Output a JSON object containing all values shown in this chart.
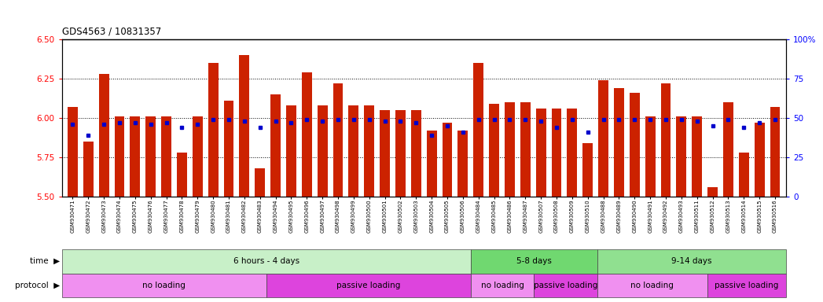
{
  "title": "GDS4563 / 10831357",
  "samples": [
    "GSM930471",
    "GSM930472",
    "GSM930473",
    "GSM930474",
    "GSM930475",
    "GSM930476",
    "GSM930477",
    "GSM930478",
    "GSM930479",
    "GSM930480",
    "GSM930481",
    "GSM930482",
    "GSM930483",
    "GSM930494",
    "GSM930495",
    "GSM930496",
    "GSM930497",
    "GSM930498",
    "GSM930499",
    "GSM930500",
    "GSM930501",
    "GSM930502",
    "GSM930503",
    "GSM930504",
    "GSM930505",
    "GSM930506",
    "GSM930484",
    "GSM930485",
    "GSM930486",
    "GSM930487",
    "GSM930507",
    "GSM930508",
    "GSM930509",
    "GSM930510",
    "GSM930488",
    "GSM930489",
    "GSM930490",
    "GSM930491",
    "GSM930492",
    "GSM930493",
    "GSM930511",
    "GSM930512",
    "GSM930513",
    "GSM930514",
    "GSM930515",
    "GSM930516"
  ],
  "bar_values": [
    6.07,
    5.85,
    6.28,
    6.01,
    6.01,
    6.01,
    6.01,
    5.78,
    6.01,
    6.35,
    6.11,
    6.4,
    5.68,
    6.15,
    6.08,
    6.29,
    6.08,
    6.22,
    6.08,
    6.08,
    6.05,
    6.05,
    6.05,
    5.92,
    5.97,
    5.92,
    6.35,
    6.09,
    6.1,
    6.1,
    6.06,
    6.06,
    6.06,
    5.84,
    6.24,
    6.19,
    6.16,
    6.01,
    6.22,
    6.01,
    6.01,
    5.56,
    6.1,
    5.78,
    5.97,
    6.07
  ],
  "percentile_values": [
    46,
    39,
    46,
    47,
    47,
    46,
    47,
    44,
    46,
    49,
    49,
    48,
    44,
    48,
    47,
    49,
    48,
    49,
    49,
    49,
    48,
    48,
    47,
    39,
    45,
    41,
    49,
    49,
    49,
    49,
    48,
    44,
    49,
    41,
    49,
    49,
    49,
    49,
    49,
    49,
    48,
    45,
    49,
    44,
    47,
    49
  ],
  "ylim_left": [
    5.5,
    6.5
  ],
  "ylim_right": [
    0,
    100
  ],
  "yticks_left": [
    5.5,
    5.75,
    6.0,
    6.25,
    6.5
  ],
  "yticks_right": [
    0,
    25,
    50,
    75,
    100
  ],
  "bar_color": "#cc2200",
  "percentile_color": "#0000cc",
  "dotted_lines": [
    5.75,
    6.0,
    6.25
  ],
  "time_groups": [
    {
      "label": "6 hours - 4 days",
      "start": 0,
      "end": 25,
      "color": "#c8f0c8"
    },
    {
      "label": "5-8 days",
      "start": 26,
      "end": 33,
      "color": "#70d870"
    },
    {
      "label": "9-14 days",
      "start": 34,
      "end": 45,
      "color": "#90e090"
    }
  ],
  "protocol_groups": [
    {
      "label": "no loading",
      "start": 0,
      "end": 12,
      "color": "#f090f0"
    },
    {
      "label": "passive loading",
      "start": 13,
      "end": 25,
      "color": "#dd44dd"
    },
    {
      "label": "no loading",
      "start": 26,
      "end": 29,
      "color": "#f090f0"
    },
    {
      "label": "passive loading",
      "start": 30,
      "end": 33,
      "color": "#dd44dd"
    },
    {
      "label": "no loading",
      "start": 34,
      "end": 40,
      "color": "#f090f0"
    },
    {
      "label": "passive loading",
      "start": 41,
      "end": 45,
      "color": "#dd44dd"
    }
  ]
}
